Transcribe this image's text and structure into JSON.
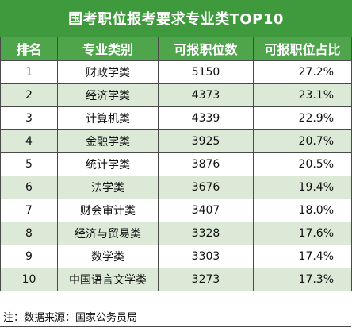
{
  "title": "国考职位报考要求专业类TOP10",
  "columns": [
    "排名",
    "专业类别",
    "可报职位数",
    "可报职位占比"
  ],
  "rows": [
    {
      "rank": "1",
      "major": "财政学类",
      "count": "5150",
      "pct": "27.2%"
    },
    {
      "rank": "2",
      "major": "经济学类",
      "count": "4373",
      "pct": "23.1%"
    },
    {
      "rank": "3",
      "major": "计算机类",
      "count": "4339",
      "pct": "22.9%"
    },
    {
      "rank": "4",
      "major": "金融学类",
      "count": "3925",
      "pct": "20.7%"
    },
    {
      "rank": "5",
      "major": "统计学类",
      "count": "3876",
      "pct": "20.5%"
    },
    {
      "rank": "6",
      "major": "法学类",
      "count": "3676",
      "pct": "19.4%"
    },
    {
      "rank": "7",
      "major": "财会审计类",
      "count": "3407",
      "pct": "18.0%"
    },
    {
      "rank": "8",
      "major": "经济与贸易类",
      "count": "3328",
      "pct": "17.6%"
    },
    {
      "rank": "9",
      "major": "数学类",
      "count": "3303",
      "pct": "17.4%"
    },
    {
      "rank": "10",
      "major": "中国语言文学类",
      "count": "3273",
      "pct": "17.3%"
    }
  ],
  "note": "注：数据来源：国家公务员局",
  "colors": {
    "title_bg": "#3f9a3d",
    "header_bg": "#4fa54c",
    "alt_row_bg": "#dbe9d6"
  }
}
